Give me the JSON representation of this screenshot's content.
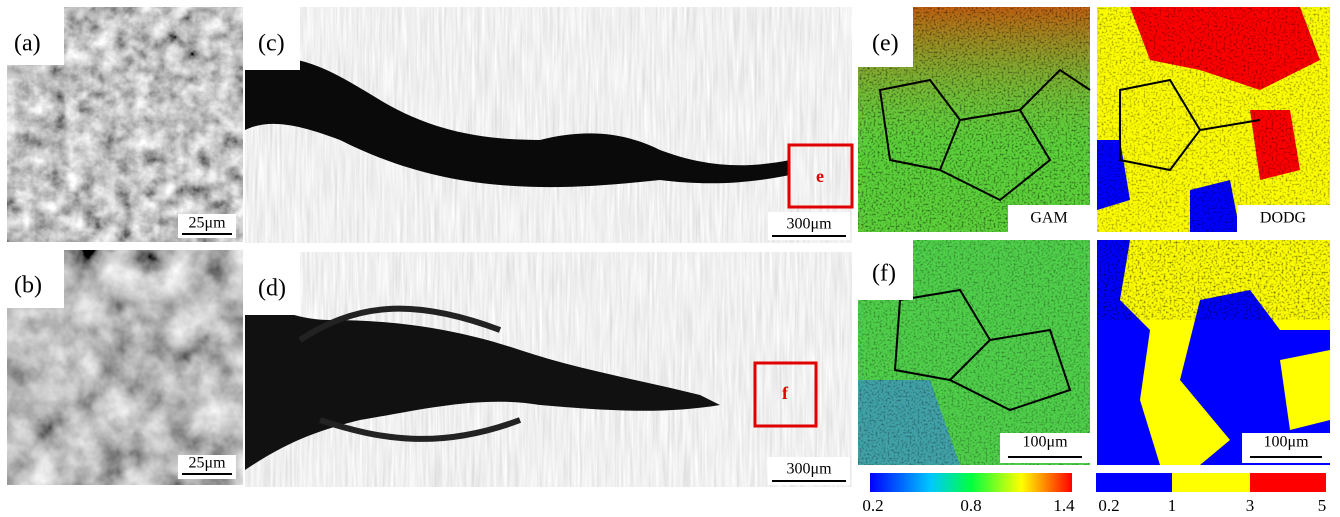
{
  "panels": [
    {
      "label": "(a)",
      "scale_bar": "25μm"
    },
    {
      "label": "(b)",
      "scale_bar": "25μm"
    },
    {
      "label": "(c)",
      "scale_bar": "300μm",
      "inset": "e"
    },
    {
      "label": "(d)",
      "scale_bar": "300μm",
      "inset": "f"
    },
    {
      "label": "(e)",
      "map_labels": [
        "GAM",
        "DODG"
      ]
    },
    {
      "label": "(f)",
      "scale_bars": [
        "100μm",
        "100μm"
      ]
    }
  ],
  "colorbars": [
    {
      "ticks": [
        0.2,
        0.8,
        1.4
      ]
    },
    {
      "ticks": [
        0.2,
        1,
        3,
        5
      ]
    }
  ]
}
